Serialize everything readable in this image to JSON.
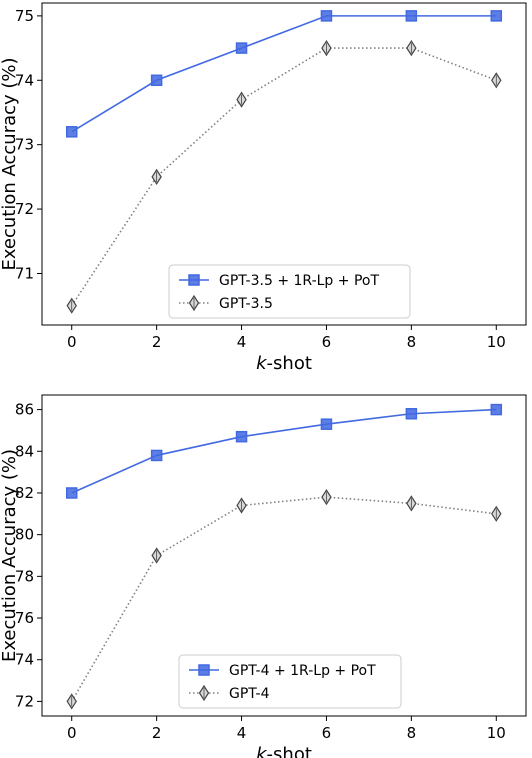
{
  "chart_data": [
    {
      "type": "line",
      "xlabel_italic": "k",
      "xlabel_rest": "-shot",
      "ylabel": "Execution Accuracy (%)",
      "x": [
        0,
        2,
        4,
        6,
        8,
        10
      ],
      "xticks": [
        0,
        2,
        4,
        6,
        8,
        10
      ],
      "yticks": [
        71,
        72,
        73,
        74,
        75
      ],
      "xlim": [
        -0.7,
        10.7
      ],
      "ylim": [
        70.2,
        75.2
      ],
      "grid": false,
      "legend_position": "lower-center",
      "series": [
        {
          "name": "GPT-3.5 + 1R-Lp + PoT",
          "values": [
            73.2,
            74.0,
            74.5,
            75.0,
            75.0,
            75.0
          ],
          "color": "#4169e1",
          "linestyle": "solid",
          "marker": "square"
        },
        {
          "name": "GPT-3.5",
          "values": [
            70.5,
            72.5,
            73.7,
            74.5,
            74.5,
            74.0
          ],
          "color": "#808080",
          "linestyle": "dotted",
          "marker": "thin-diamond"
        }
      ]
    },
    {
      "type": "line",
      "xlabel_italic": "k",
      "xlabel_rest": "-shot",
      "ylabel": "Execution Accuracy (%)",
      "x": [
        0,
        2,
        4,
        6,
        8,
        10
      ],
      "xticks": [
        0,
        2,
        4,
        6,
        8,
        10
      ],
      "yticks": [
        72,
        74,
        76,
        78,
        80,
        82,
        84,
        86
      ],
      "xlim": [
        -0.7,
        10.7
      ],
      "ylim": [
        71.3,
        86.7
      ],
      "grid": false,
      "legend_position": "lower-center",
      "series": [
        {
          "name": "GPT-4 + 1R-Lp + PoT",
          "values": [
            82.0,
            83.8,
            84.7,
            85.3,
            85.8,
            86.0
          ],
          "color": "#4169e1",
          "linestyle": "solid",
          "marker": "square"
        },
        {
          "name": "GPT-4",
          "values": [
            72.0,
            79.0,
            81.4,
            81.8,
            81.5,
            81.0
          ],
          "color": "#808080",
          "linestyle": "dotted",
          "marker": "thin-diamond"
        }
      ]
    }
  ]
}
